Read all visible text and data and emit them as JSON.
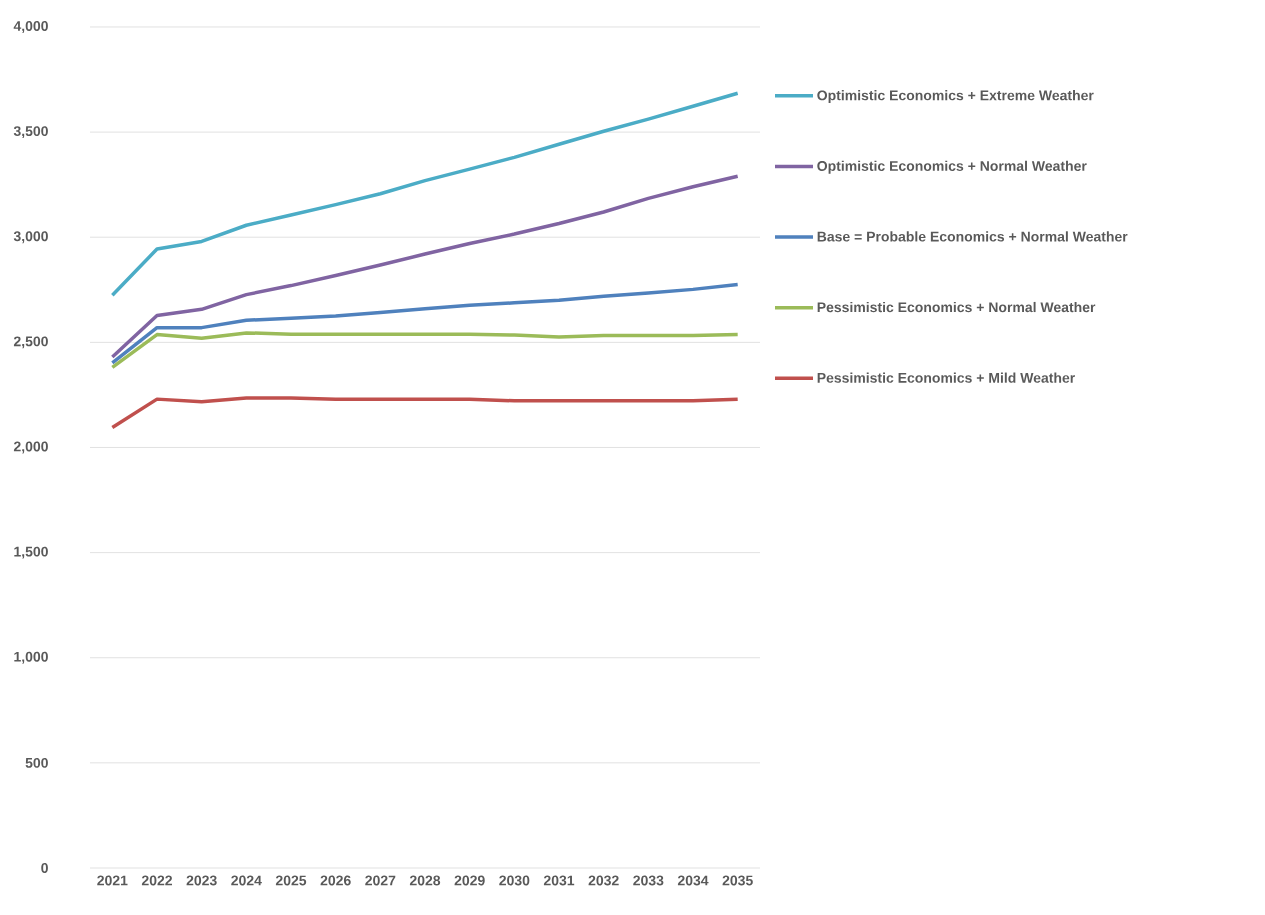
{
  "chart_data": {
    "type": "line",
    "categories": [
      "2021",
      "2022",
      "2023",
      "2024",
      "2025",
      "2026",
      "2027",
      "2028",
      "2029",
      "2030",
      "2031",
      "2032",
      "2033",
      "2034",
      "2035"
    ],
    "series": [
      {
        "name": "Optimistic Economics + Extreme Weather",
        "color": "#4bacc6",
        "values": [
          2724,
          2944,
          2980,
          3057,
          3106,
          3155,
          3207,
          3269,
          3324,
          3380,
          3442,
          3504,
          3562,
          3623,
          3685
        ]
      },
      {
        "name": "Optimistic Economics + Normal Weather",
        "color": "#8064a2",
        "values": [
          2430,
          2628,
          2657,
          2727,
          2770,
          2818,
          2868,
          2920,
          2970,
          3015,
          3065,
          3120,
          3185,
          3240,
          3290
        ]
      },
      {
        "name": "Base = Probable Economics + Normal Weather",
        "color": "#4f81bd",
        "values": [
          2402,
          2570,
          2570,
          2605,
          2615,
          2625,
          2642,
          2660,
          2677,
          2688,
          2700,
          2719,
          2735,
          2752,
          2775
        ]
      },
      {
        "name": "Pessimistic Economics + Normal Weather",
        "color": "#9bbb59",
        "values": [
          2381,
          2537,
          2520,
          2545,
          2539,
          2539,
          2539,
          2539,
          2539,
          2535,
          2526,
          2533,
          2533,
          2533,
          2537
        ]
      },
      {
        "name": "Pessimistic Economics + Mild Weather",
        "color": "#c0504d",
        "values": [
          2095,
          2230,
          2218,
          2235,
          2235,
          2229,
          2229,
          2229,
          2229,
          2222,
          2222,
          2222,
          2222,
          2222,
          2230
        ]
      }
    ],
    "ylim": [
      0,
      4000
    ],
    "yticks": [
      0,
      500,
      {
        "value": 1000,
        "label": "1,000"
      },
      {
        "value": 1500,
        "label": "1,500"
      },
      {
        "value": 2000,
        "label": "2,000"
      },
      {
        "value": 2500,
        "label": "2,500"
      },
      {
        "value": 3000,
        "label": "3,000"
      },
      {
        "value": 3500,
        "label": "3,500"
      },
      {
        "value": 4000,
        "label": "4,000"
      }
    ],
    "grid": "y",
    "legend": "right",
    "marker": "none",
    "line_style": "solid"
  }
}
